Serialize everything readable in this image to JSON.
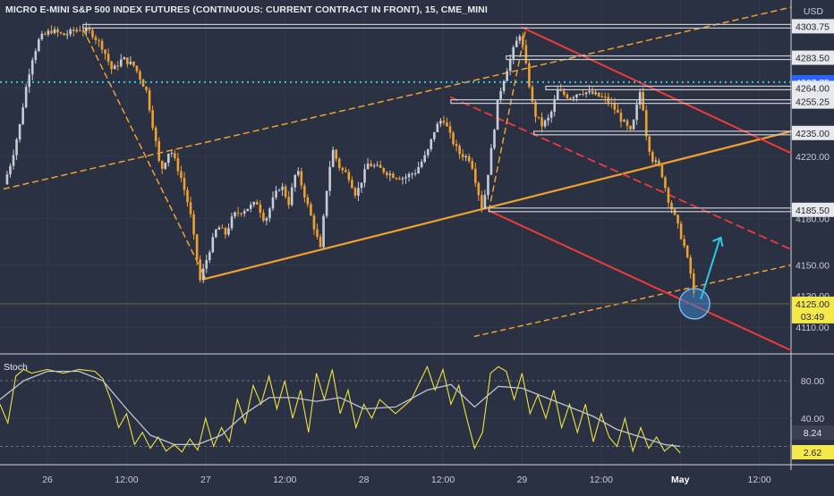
{
  "header": {
    "title": "MICRO E-MINI S&P 500 INDEX FUTURES (CONTINUOUS: CURRENT CONTRACT IN FRONT), 15, CME_MINI",
    "currency": "USD"
  },
  "oscillator": {
    "label": "Stoch"
  },
  "colors": {
    "background": "#2a3142",
    "grid": "#323a4d",
    "candle_up": "#c7ccd6",
    "candle_down": "#f0a030",
    "orange_line": "#f0a030",
    "red_line": "#f03a3a",
    "level_box": "#c9ccd3",
    "cyan": "#2ec8e6",
    "stoch_k": "#f2e240",
    "stoch_d": "#c0c4cc"
  },
  "chart_data": [
    {
      "type": "candlestick",
      "title": "MICRO E-MINI S&P 500 INDEX FUTURES (CONTINUOUS: CURRENT CONTRACT IN FRONT), 15, CME_MINI",
      "ylim": [
        4095,
        4308
      ],
      "xlim": [
        0,
        100
      ],
      "x_ticks": [
        {
          "x": 6,
          "label": "26"
        },
        {
          "x": 16,
          "label": "12:00"
        },
        {
          "x": 26,
          "label": "27"
        },
        {
          "x": 36,
          "label": "12:00"
        },
        {
          "x": 46,
          "label": "28"
        },
        {
          "x": 56,
          "label": "12:00"
        },
        {
          "x": 66,
          "label": "29"
        },
        {
          "x": 76,
          "label": "12:00"
        },
        {
          "x": 86,
          "label": "May"
        },
        {
          "x": 96,
          "label": "12:00"
        }
      ],
      "y_ticks": [
        4110,
        4150,
        4185.5,
        4220,
        4235,
        4255.25,
        4264,
        4283.5,
        4303.75
      ],
      "price_points": [
        [
          0.5,
          4202
        ],
        [
          1.5,
          4218
        ],
        [
          2.5,
          4240
        ],
        [
          3.2,
          4262
        ],
        [
          4,
          4282
        ],
        [
          5,
          4296
        ],
        [
          6.5,
          4301
        ],
        [
          8,
          4298
        ],
        [
          10,
          4302
        ],
        [
          11.5,
          4300
        ],
        [
          13,
          4290
        ],
        [
          14.2,
          4275
        ],
        [
          15.5,
          4283
        ],
        [
          17,
          4278
        ],
        [
          18.5,
          4262
        ],
        [
          19.5,
          4235
        ],
        [
          20.3,
          4210
        ],
        [
          21.5,
          4225
        ],
        [
          22.8,
          4208
        ],
        [
          24,
          4185
        ],
        [
          25.3,
          4140
        ],
        [
          26.5,
          4160
        ],
        [
          27.5,
          4175
        ],
        [
          28.5,
          4170
        ],
        [
          29.5,
          4182
        ],
        [
          31,
          4186
        ],
        [
          32.5,
          4190
        ],
        [
          33.5,
          4178
        ],
        [
          34.5,
          4192
        ],
        [
          35.5,
          4202
        ],
        [
          36.5,
          4190
        ],
        [
          37.5,
          4212
        ],
        [
          38.5,
          4195
        ],
        [
          39.5,
          4178
        ],
        [
          40.5,
          4160
        ],
        [
          41.2,
          4195
        ],
        [
          42,
          4225
        ],
        [
          43,
          4212
        ],
        [
          44,
          4208
        ],
        [
          45,
          4195
        ],
        [
          46.5,
          4215
        ],
        [
          48,
          4212
        ],
        [
          49.5,
          4208
        ],
        [
          51,
          4206
        ],
        [
          52.5,
          4210
        ],
        [
          54,
          4222
        ],
        [
          55,
          4238
        ],
        [
          56,
          4245
        ],
        [
          57,
          4232
        ],
        [
          58,
          4222
        ],
        [
          59.5,
          4218
        ],
        [
          61,
          4185
        ],
        [
          62,
          4220
        ],
        [
          63,
          4258
        ],
        [
          64,
          4275
        ],
        [
          65,
          4290
        ],
        [
          65.8,
          4300
        ],
        [
          66.5,
          4278
        ],
        [
          67.5,
          4248
        ],
        [
          68.5,
          4240
        ],
        [
          69.5,
          4245
        ],
        [
          70.5,
          4262
        ],
        [
          72,
          4258
        ],
        [
          73.5,
          4262
        ],
        [
          75,
          4260
        ],
        [
          76.5,
          4257
        ],
        [
          77.5,
          4252
        ],
        [
          78.5,
          4244
        ],
        [
          79.8,
          4235
        ],
        [
          81,
          4264
        ],
        [
          81.8,
          4230
        ],
        [
          82.5,
          4218
        ],
        [
          83.5,
          4212
        ],
        [
          84.5,
          4192
        ],
        [
          85.5,
          4178
        ],
        [
          86.5,
          4162
        ],
        [
          87.5,
          4140
        ],
        [
          87.8,
          4126
        ]
      ],
      "horizontal_levels": [
        4303.75,
        4283.5,
        4264,
        4255.25,
        4235,
        4185.5
      ],
      "current_price": "4267.75",
      "last_price": "4125.00",
      "countdown": "03:49",
      "price_labels": [
        {
          "value": 4303.75,
          "text": "4303.75"
        },
        {
          "value": 4283.5,
          "text": "4283.50"
        },
        {
          "value": 4267.75,
          "text": "4267.75",
          "highlight": "blue"
        },
        {
          "value": 4264,
          "text": "4264.00"
        },
        {
          "value": 4255.25,
          "text": "4255.25"
        },
        {
          "value": 4235,
          "text": "4235.00"
        },
        {
          "value": 4220,
          "text": "4220.00"
        },
        {
          "value": 4185.5,
          "text": "4185.50"
        },
        {
          "value": 4180,
          "text": "4180.00"
        },
        {
          "value": 4150,
          "text": "4150.00"
        },
        {
          "value": 4130,
          "text": "4130.00"
        },
        {
          "value": 4125,
          "text": "4125.00",
          "highlight": "yellow"
        },
        {
          "value": 4110,
          "text": "4110.00"
        }
      ]
    },
    {
      "type": "line",
      "title": "Stoch",
      "ylim": [
        0,
        100
      ],
      "y_ticks": [
        80,
        40
      ],
      "y_tick_labels": [
        "80.00",
        "40.00"
      ],
      "last_values": [
        {
          "text": "8.24",
          "style": "grey"
        },
        {
          "text": "2.62",
          "style": "yellow"
        }
      ],
      "series": [
        {
          "name": "%K",
          "points": [
            [
              0,
              55
            ],
            [
              1,
              35
            ],
            [
              2,
              85
            ],
            [
              3,
              92
            ],
            [
              4,
              88
            ],
            [
              6,
              92
            ],
            [
              8,
              88
            ],
            [
              10,
              92
            ],
            [
              12,
              90
            ],
            [
              13,
              82
            ],
            [
              14,
              60
            ],
            [
              15,
              30
            ],
            [
              16,
              45
            ],
            [
              17,
              12
            ],
            [
              18,
              25
            ],
            [
              19,
              8
            ],
            [
              20,
              20
            ],
            [
              21,
              5
            ],
            [
              22,
              12
            ],
            [
              23,
              4
            ],
            [
              24,
              18
            ],
            [
              25,
              6
            ],
            [
              26,
              40
            ],
            [
              27,
              10
            ],
            [
              28,
              30
            ],
            [
              29,
              15
            ],
            [
              30,
              60
            ],
            [
              31,
              35
            ],
            [
              32,
              75
            ],
            [
              33,
              55
            ],
            [
              34,
              85
            ],
            [
              35,
              50
            ],
            [
              36,
              80
            ],
            [
              37,
              40
            ],
            [
              38,
              70
            ],
            [
              39,
              25
            ],
            [
              40,
              88
            ],
            [
              41,
              60
            ],
            [
              42,
              92
            ],
            [
              43,
              45
            ],
            [
              44,
              70
            ],
            [
              45,
              30
            ],
            [
              46,
              55
            ],
            [
              47,
              40
            ],
            [
              48,
              60
            ],
            [
              50,
              45
            ],
            [
              52,
              60
            ],
            [
              54,
              95
            ],
            [
              55,
              70
            ],
            [
              56,
              92
            ],
            [
              57,
              55
            ],
            [
              58,
              75
            ],
            [
              59,
              40
            ],
            [
              60,
              8
            ],
            [
              61,
              25
            ],
            [
              62,
              88
            ],
            [
              63,
              95
            ],
            [
              64,
              90
            ],
            [
              65,
              60
            ],
            [
              66,
              88
            ],
            [
              67,
              45
            ],
            [
              68,
              65
            ],
            [
              69,
              40
            ],
            [
              70,
              70
            ],
            [
              71,
              30
            ],
            [
              72,
              55
            ],
            [
              73,
              25
            ],
            [
              74,
              55
            ],
            [
              75,
              15
            ],
            [
              76,
              45
            ],
            [
              77,
              20
            ],
            [
              78,
              10
            ],
            [
              79,
              40
            ],
            [
              80,
              5
            ],
            [
              81,
              30
            ],
            [
              82,
              8
            ],
            [
              83,
              20
            ],
            [
              84,
              5
            ],
            [
              85,
              12
            ],
            [
              86,
              3
            ]
          ]
        },
        {
          "name": "%D",
          "points": [
            [
              0,
              60
            ],
            [
              3,
              80
            ],
            [
              6,
              90
            ],
            [
              10,
              90
            ],
            [
              13,
              80
            ],
            [
              16,
              50
            ],
            [
              19,
              22
            ],
            [
              22,
              12
            ],
            [
              25,
              12
            ],
            [
              28,
              22
            ],
            [
              31,
              45
            ],
            [
              34,
              62
            ],
            [
              37,
              62
            ],
            [
              40,
              58
            ],
            [
              43,
              62
            ],
            [
              46,
              50
            ],
            [
              50,
              52
            ],
            [
              54,
              70
            ],
            [
              57,
              76
            ],
            [
              60,
              52
            ],
            [
              63,
              74
            ],
            [
              66,
              72
            ],
            [
              69,
              62
            ],
            [
              72,
              52
            ],
            [
              75,
              42
            ],
            [
              78,
              28
            ],
            [
              81,
              20
            ],
            [
              84,
              12
            ],
            [
              86,
              10
            ]
          ]
        }
      ]
    }
  ]
}
